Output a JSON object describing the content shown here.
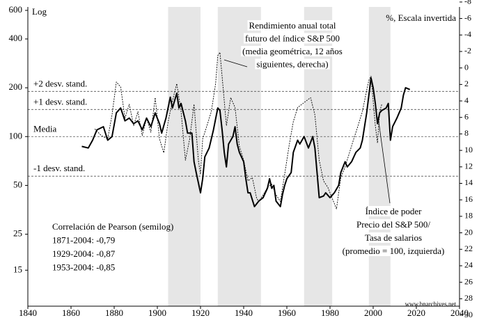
{
  "chart_data": {
    "type": "line",
    "xlim": [
      1840,
      2040
    ],
    "xticks": [
      1840,
      1860,
      1880,
      1900,
      1920,
      1940,
      1960,
      1980,
      2000,
      2020,
      2040
    ],
    "ylim": [
      9,
      630
    ],
    "yticks": [
      15,
      25,
      50,
      100,
      200,
      400,
      600
    ],
    "log_y": true,
    "y2lim": [
      -7.4,
      28.9
    ],
    "y2ticks": [
      -8,
      -6,
      -4,
      -2,
      0,
      2,
      4,
      6,
      8,
      10,
      12,
      14,
      16,
      18,
      20,
      22,
      24,
      26,
      28,
      30
    ],
    "y2_inverted": true,
    "shaded_periods": [
      [
        1905,
        1920
      ],
      [
        1928,
        1948
      ],
      [
        1968,
        1981
      ],
      [
        1998,
        2008
      ]
    ],
    "shade_color": "#e6e6e6",
    "reference_lines": [
      {
        "label": "+2 desv. stand.",
        "value": 190
      },
      {
        "label": "+1 desv. stand.",
        "value": 147
      },
      {
        "label": "Media",
        "value": 100
      },
      {
        "label": "-1 desv. stand.",
        "value": 57
      }
    ],
    "annotations": {
      "left_axis": "Log",
      "right_axis": "%, Escala invertida",
      "returns": [
        "Rendimiento anual total",
        "futuro del índice S&P 500",
        "(media geométrica, 12 años",
        "siguientes, derecha)"
      ],
      "power": [
        "Índice de poder",
        "Precio del S&P 500/",
        "Tasa de salarios",
        "(promedio = 100, izquierda)"
      ],
      "correlation": [
        "Correlación de Pearson (semilog)",
        "1871-2004: -0,79",
        "1929-2004: -0,87",
        "1953-2004: -0,85"
      ],
      "source": "www.bnarchives.net"
    },
    "series": [
      {
        "name": "Índice de poder",
        "color": "#000000",
        "style": "solid",
        "x": [
          1865,
          1868,
          1870,
          1872,
          1875,
          1877,
          1879,
          1881,
          1883,
          1885,
          1887,
          1889,
          1891,
          1893,
          1895,
          1897,
          1899,
          1901,
          1902,
          1904,
          1906,
          1907,
          1909,
          1910,
          1911,
          1913,
          1914,
          1916,
          1917,
          1918,
          1920,
          1921,
          1922,
          1924,
          1926,
          1928,
          1929,
          1930,
          1931,
          1932,
          1933,
          1935,
          1936,
          1937,
          1938,
          1940,
          1941,
          1942,
          1943,
          1945,
          1947,
          1949,
          1951,
          1952,
          1953,
          1954,
          1955,
          1957,
          1958,
          1959,
          1960,
          1962,
          1963,
          1965,
          1966,
          1968,
          1970,
          1972,
          1973,
          1974,
          1975,
          1977,
          1978,
          1980,
          1982,
          1984,
          1985,
          1987,
          1988,
          1990,
          1992,
          1994,
          1995,
          1997,
          1998,
          1999,
          2000,
          2001,
          2002,
          2003,
          2004,
          2006,
          2007,
          2008,
          2009,
          2011,
          2013,
          2014,
          2015,
          2017
        ],
        "values": [
          87,
          85,
          95,
          110,
          115,
          95,
          100,
          140,
          150,
          125,
          130,
          120,
          125,
          110,
          130,
          115,
          140,
          120,
          105,
          130,
          175,
          150,
          185,
          150,
          160,
          125,
          105,
          105,
          70,
          60,
          45,
          55,
          75,
          85,
          110,
          150,
          145,
          110,
          80,
          65,
          90,
          100,
          115,
          90,
          80,
          70,
          55,
          45,
          45,
          37,
          40,
          42,
          48,
          55,
          48,
          50,
          40,
          37,
          44,
          50,
          55,
          60,
          80,
          95,
          90,
          100,
          85,
          100,
          85,
          60,
          42,
          43,
          45,
          42,
          45,
          50,
          60,
          70,
          65,
          70,
          80,
          85,
          95,
          140,
          180,
          230,
          200,
          160,
          120,
          140,
          145,
          150,
          160,
          95,
          115,
          130,
          150,
          180,
          200,
          195
        ]
      },
      {
        "name": "Rendimiento anual total",
        "color": "#000000",
        "style": "dashed",
        "axis": "y2",
        "x": [
          1871,
          1874,
          1877,
          1879,
          1881,
          1883,
          1885,
          1887,
          1889,
          1891,
          1893,
          1895,
          1897,
          1899,
          1901,
          1903,
          1905,
          1907,
          1909,
          1911,
          1913,
          1915,
          1917,
          1919,
          1920,
          1921,
          1923,
          1925,
          1927,
          1928,
          1929,
          1930,
          1932,
          1934,
          1936,
          1938,
          1940,
          1942,
          1944,
          1946,
          1947,
          1949,
          1951,
          1953,
          1955,
          1957,
          1959,
          1961,
          1963,
          1965,
          1967,
          1969,
          1971,
          1973,
          1975,
          1977,
          1979,
          1981,
          1983,
          1985,
          1987,
          1989,
          1991,
          1993,
          1995,
          1997,
          1998,
          1999,
          2001,
          2002,
          2003,
          2004
        ],
        "values": [
          7.4,
          8.2,
          8.6,
          5.7,
          1.7,
          2.3,
          6.1,
          4.4,
          7.0,
          5.3,
          8.2,
          6.1,
          7.8,
          3.6,
          8.6,
          10.3,
          6.5,
          4.0,
          1.9,
          5.3,
          11.2,
          8.6,
          4.4,
          11.2,
          12.9,
          8.6,
          7.0,
          5.3,
          1.9,
          -1.5,
          -1.9,
          1.0,
          7.0,
          3.6,
          4.8,
          9.5,
          11.2,
          13.7,
          13.3,
          15.8,
          16.2,
          15.4,
          14.5,
          14.1,
          15.4,
          16.2,
          12.9,
          9.5,
          6.5,
          4.8,
          4.4,
          4.0,
          3.6,
          5.7,
          11.2,
          13.7,
          14.5,
          15.8,
          17.1,
          13.3,
          12.0,
          10.3,
          8.6,
          7.0,
          5.3,
          2.7,
          1.5,
          1.0,
          7.0,
          9.1,
          5.3,
          4.4
        ]
      }
    ]
  }
}
